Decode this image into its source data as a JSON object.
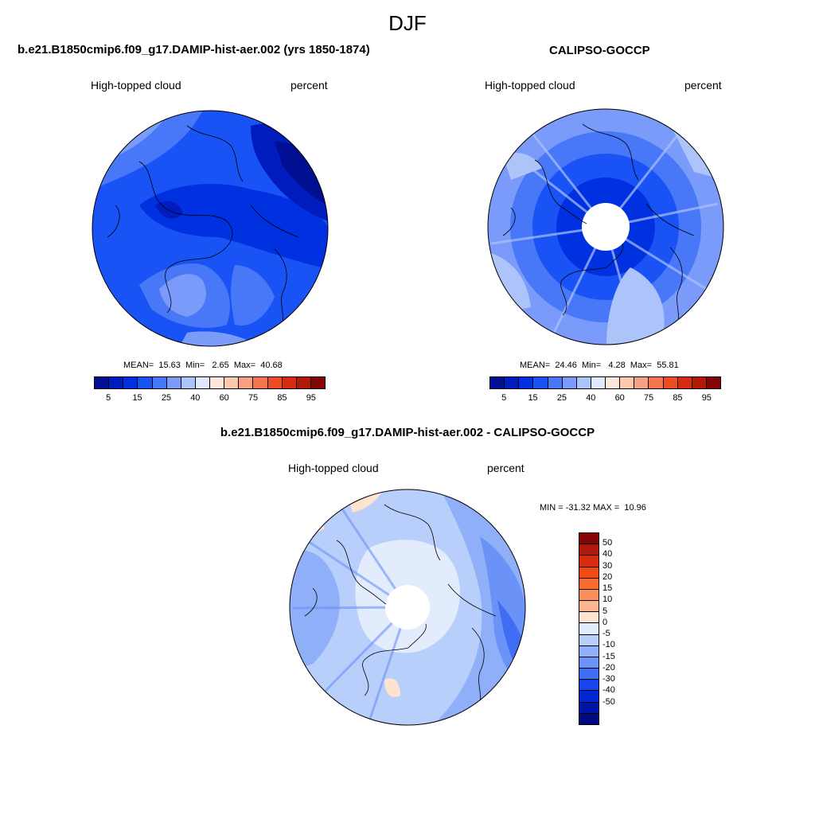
{
  "figure": {
    "title": "DJF"
  },
  "panels": [
    {
      "title": "b.e21.B1850cmip6.f09_g17.DAMIP-hist-aer.002 (yrs 1850-1874)",
      "variable": "High-topped cloud",
      "units": "percent",
      "stats": {
        "mean_label": "MEAN=",
        "mean": "15.63",
        "min_label": "Min=",
        "min": "2.65",
        "max_label": "Max=",
        "max": "40.68"
      },
      "colorbar": {
        "colors": [
          "#000e91",
          "#001cbe",
          "#0031e0",
          "#1a53f5",
          "#4877f8",
          "#7a9bf9",
          "#adc4fb",
          "#dfe8fd",
          "#fde6da",
          "#fbc8b0",
          "#f8a082",
          "#f47752",
          "#ef4c26",
          "#d62b0f",
          "#b0180a",
          "#850404"
        ],
        "ticks": [
          "5",
          "15",
          "25",
          "40",
          "60",
          "75",
          "85",
          "95"
        ]
      }
    },
    {
      "title": "CALIPSO-GOCCP",
      "variable": "High-topped cloud",
      "units": "percent",
      "stats": {
        "mean_label": "MEAN=",
        "mean": "24.46",
        "min_label": "Min=",
        "min": "4.28",
        "max_label": "Max=",
        "max": "55.81"
      },
      "colorbar": {
        "colors": [
          "#000e91",
          "#001cbe",
          "#0031e0",
          "#1a53f5",
          "#4877f8",
          "#7a9bf9",
          "#adc4fb",
          "#dfe8fd",
          "#fde6da",
          "#fbc8b0",
          "#f8a082",
          "#f47752",
          "#ef4c26",
          "#d62b0f",
          "#b0180a",
          "#850404"
        ],
        "ticks": [
          "5",
          "15",
          "25",
          "40",
          "60",
          "75",
          "85",
          "95"
        ]
      }
    },
    {
      "title": "b.e21.B1850cmip6.f09_g17.DAMIP-hist-aer.002 - CALIPSO-GOCCP",
      "variable": "High-topped cloud",
      "units": "percent",
      "minmax": "MIN = -31.32 MAX =  10.96",
      "colorbar": {
        "colors": [
          "#850404",
          "#b0180a",
          "#d62b0f",
          "#f04a15",
          "#f96b2c",
          "#fb8f5c",
          "#fcb590",
          "#fde3d0",
          "#e3ecfd",
          "#b9cffb",
          "#8fb0f9",
          "#6a92f7",
          "#3f6ef5",
          "#1645f0",
          "#0028d2",
          "#0014a8",
          "#000a82"
        ],
        "ticks": [
          "50",
          "40",
          "30",
          "20",
          "15",
          "10",
          "5",
          "0",
          "-5",
          "-10",
          "-15",
          "-20",
          "-30",
          "-40",
          "-50"
        ]
      }
    }
  ]
}
